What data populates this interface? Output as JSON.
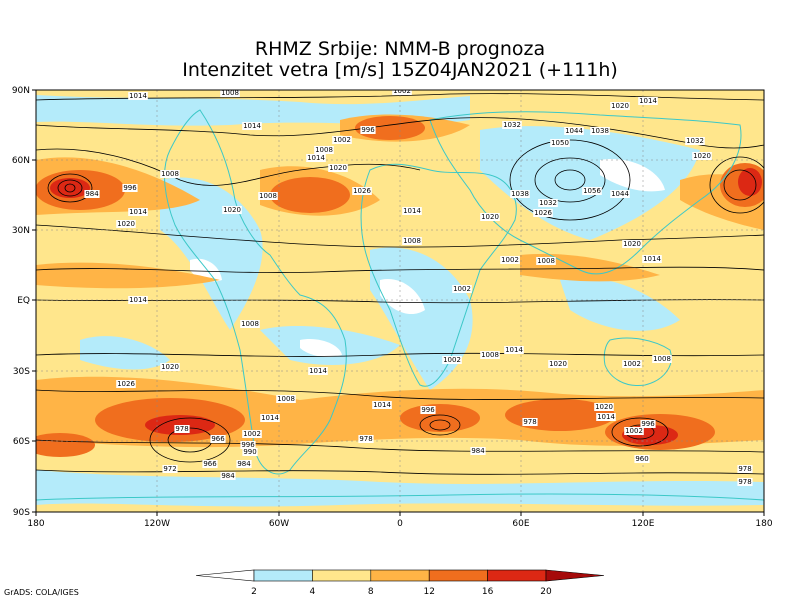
{
  "header": {
    "title_line1": "RHMZ Srbije: NMM-B prognoza",
    "title_line2": "Intenzitet vetra [m/s] 15Z04JAN2021 (+111h)"
  },
  "axes": {
    "lat_labels": [
      "90N",
      "60N",
      "30N",
      "EQ",
      "30S",
      "60S",
      "90S"
    ],
    "lon_labels": [
      "180",
      "120W",
      "60W",
      "0",
      "60E",
      "120E",
      "180"
    ]
  },
  "colorbar": {
    "ticks": [
      "2",
      "4",
      "8",
      "12",
      "16",
      "20"
    ],
    "colors": [
      "#ffffff",
      "#b4ebfa",
      "#ffe68c",
      "#ffb446",
      "#f06e1e",
      "#dc2814",
      "#a50a0a"
    ]
  },
  "isobar_labels": [
    "1014",
    "1008",
    "1002",
    "1014",
    "996",
    "1002",
    "1008",
    "1014",
    "1020",
    "1032",
    "1020",
    "1014",
    "1044",
    "1038",
    "1050",
    "1032",
    "1020",
    "984",
    "996",
    "1008",
    "1014",
    "1020",
    "1008",
    "1008",
    "1020",
    "1026",
    "1014",
    "1020",
    "1038",
    "1056",
    "1044",
    "1032",
    "1026",
    "1020",
    "1014",
    "1008",
    "1002",
    "1014",
    "1008",
    "1002",
    "1008",
    "1014",
    "1020",
    "1002",
    "1008",
    "1014",
    "1026",
    "1020",
    "1008",
    "1014",
    "1002",
    "996",
    "978",
    "1014",
    "1002",
    "996",
    "990",
    "984",
    "978",
    "972",
    "966",
    "960",
    "984",
    "978",
    "1020",
    "1014",
    "1002",
    "996",
    "978",
    "966",
    "984",
    "978"
  ],
  "footer": {
    "credit": "GrADS: COLA/IGES"
  }
}
